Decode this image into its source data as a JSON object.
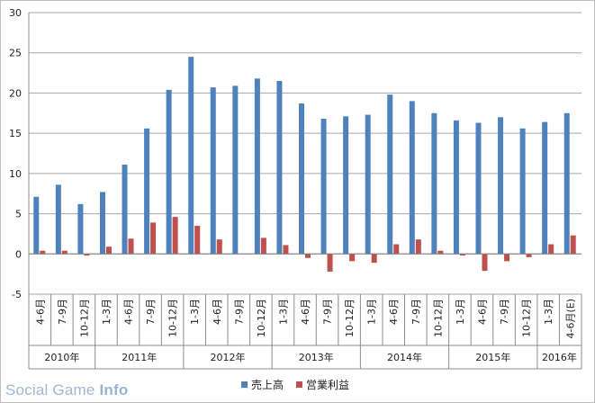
{
  "chart_data": {
    "type": "bar",
    "title": "",
    "xlabel": "",
    "ylabel": "",
    "ylim": [
      -5,
      30
    ],
    "yticks": [
      -5,
      0,
      5,
      10,
      15,
      20,
      25,
      30
    ],
    "grid": true,
    "legend_position": "bottom",
    "categories": [
      "4-6月",
      "7-9月",
      "10-12月",
      "1-3月",
      "4-6月",
      "7-9月",
      "10-12月",
      "1-3月",
      "4-6月",
      "7-9月",
      "10-12月",
      "1-3月",
      "4-6月",
      "7-9月",
      "10-12月",
      "1-3月",
      "4-6月",
      "7-9月",
      "10-12月",
      "1-3月",
      "4-6月",
      "7-9月",
      "10-12月",
      "1-3月",
      "4-6月(E)"
    ],
    "year_groups": [
      {
        "label": "2010年",
        "count": 3
      },
      {
        "label": "2011年",
        "count": 4
      },
      {
        "label": "2012年",
        "count": 4
      },
      {
        "label": "2013年",
        "count": 4
      },
      {
        "label": "2014年",
        "count": 4
      },
      {
        "label": "2015年",
        "count": 4
      },
      {
        "label": "2016年",
        "count": 2
      }
    ],
    "series": [
      {
        "name": "売上高",
        "color": "#4f81bd",
        "values": [
          7.1,
          8.6,
          6.2,
          7.7,
          11.1,
          15.6,
          20.4,
          24.5,
          20.7,
          20.9,
          21.8,
          21.5,
          18.7,
          16.8,
          17.1,
          17.3,
          19.8,
          19.0,
          17.5,
          16.6,
          16.3,
          17.0,
          15.6,
          16.4,
          17.5
        ]
      },
      {
        "name": "営業利益",
        "color": "#c0504d",
        "values": [
          0.4,
          0.4,
          -0.2,
          0.9,
          1.9,
          3.9,
          4.6,
          3.5,
          1.8,
          0.0,
          2.0,
          1.1,
          -0.5,
          -2.2,
          -0.9,
          -1.1,
          1.2,
          1.8,
          0.4,
          -0.2,
          -2.1,
          -0.9,
          -0.4,
          1.2,
          2.3
        ]
      }
    ]
  },
  "watermark": {
    "part1": "Social Game ",
    "part2": "Info"
  }
}
